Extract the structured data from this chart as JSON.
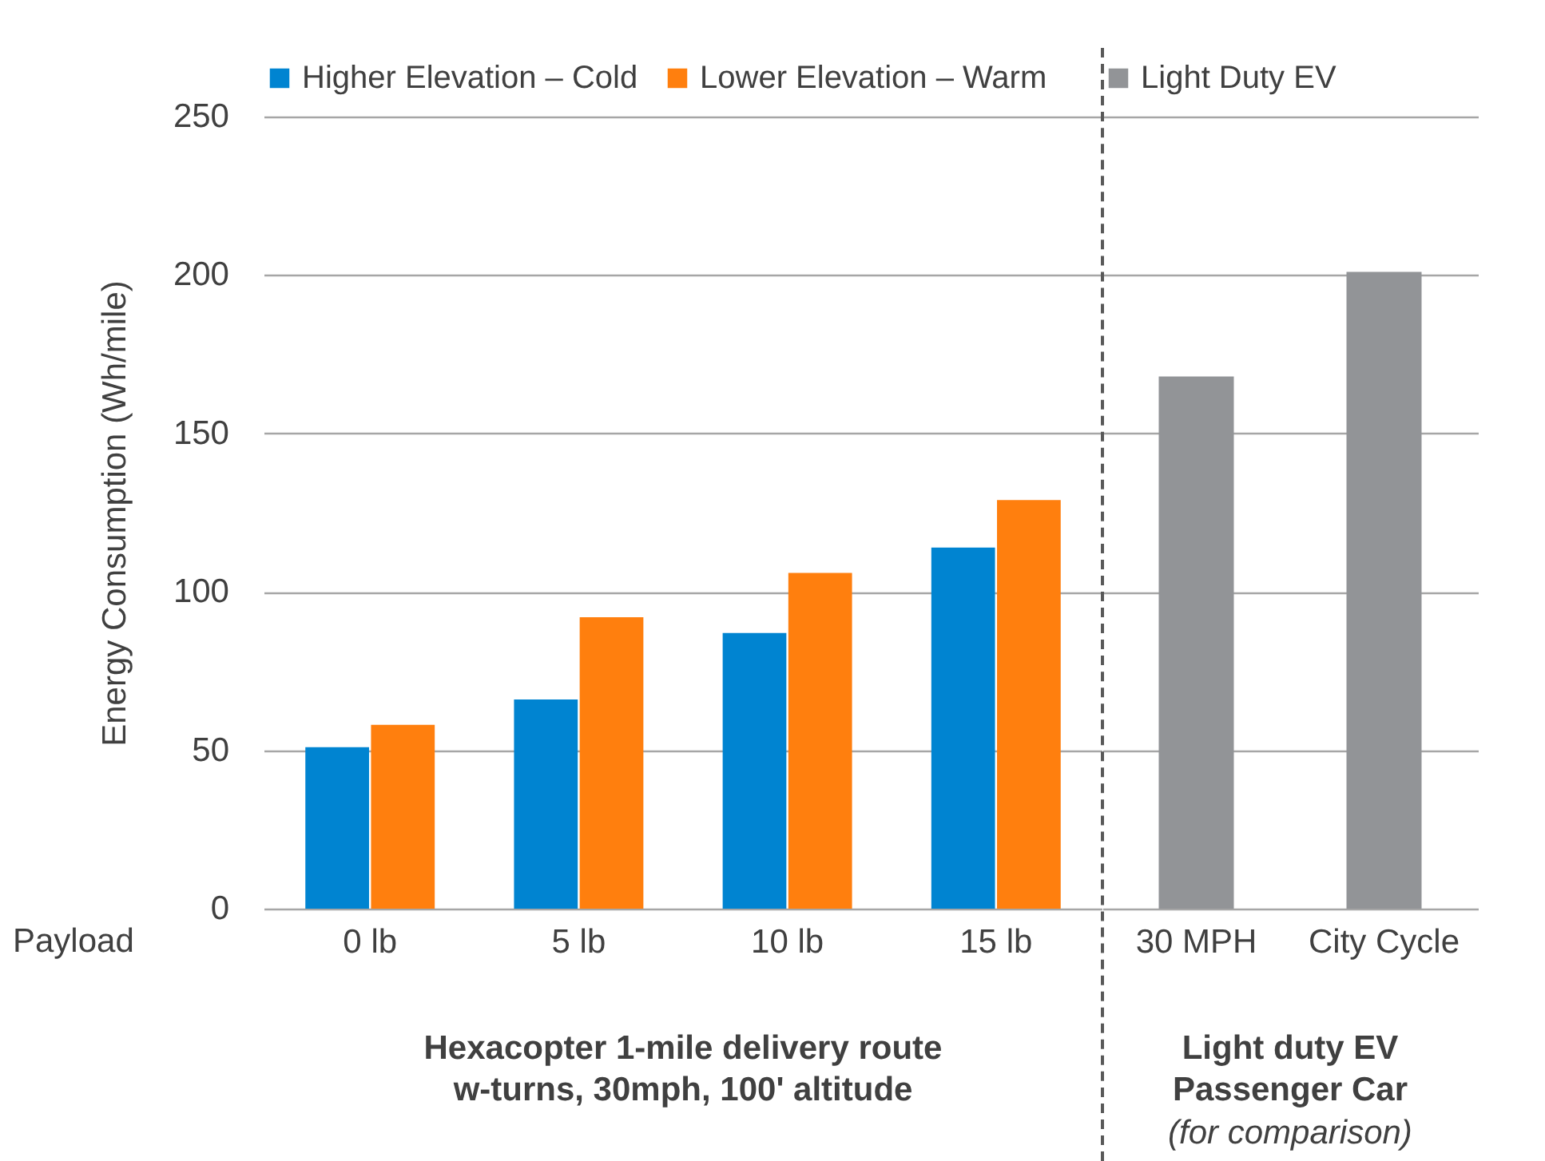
{
  "chart_data": [
    {
      "type": "bar",
      "ylabel": "Energy Consumption (Wh/mile)",
      "xlabel": "Hexacopter 1-mile delivery route\nw-turns, 30mph, 100' altitude",
      "annotations": [
        "Payload"
      ],
      "categories": [
        "0 lb",
        "5 lb",
        "10 lb",
        "15 lb"
      ],
      "series": [
        {
          "name": "Higher Elevation – Cold",
          "color": "#0084d1",
          "values": [
            51,
            66,
            87,
            114
          ]
        },
        {
          "name": "Lower Elevation – Warm",
          "color": "#ff7f0e",
          "values": [
            58,
            92,
            106,
            129
          ]
        }
      ],
      "ylim": [
        0,
        250
      ],
      "yticks": [
        0,
        50,
        100,
        150,
        200,
        250
      ],
      "grid": "y",
      "legend": "top"
    },
    {
      "type": "bar",
      "xlabel": "Light duty EV\nPassenger Car",
      "annotations": [
        "(for comparison)"
      ],
      "categories": [
        "30 MPH",
        "City Cycle"
      ],
      "series": [
        {
          "name": "Light Duty EV",
          "color": "#929497",
          "values": [
            168,
            201
          ]
        }
      ],
      "ylim": [
        0,
        250
      ],
      "yticks": [
        0,
        50,
        100,
        150,
        200,
        250
      ],
      "grid": "y",
      "legend": "top",
      "tick_labels": "x"
    }
  ]
}
